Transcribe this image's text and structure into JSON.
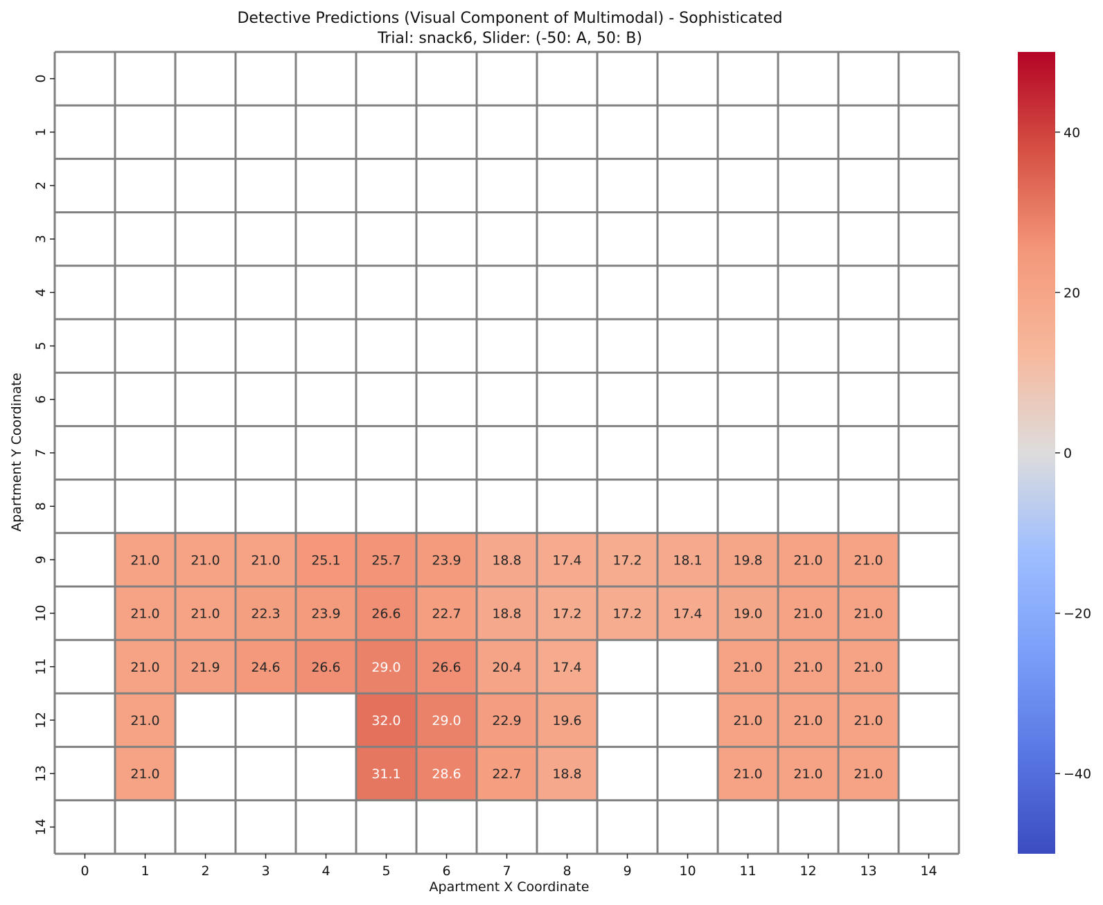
{
  "chart_data": {
    "type": "heatmap",
    "title": "Detective Predictions (Visual Component of Multimodal) - Sophisticated",
    "subtitle": "Trial: snack6, Slider: (-50: A, 50: B)",
    "xlabel": "Apartment X Coordinate",
    "ylabel": "Apartment Y Coordinate",
    "x": [
      "0",
      "1",
      "2",
      "3",
      "4",
      "5",
      "6",
      "7",
      "8",
      "9",
      "10",
      "11",
      "12",
      "13",
      "14"
    ],
    "y": [
      "0",
      "1",
      "2",
      "3",
      "4",
      "5",
      "6",
      "7",
      "8",
      "9",
      "10",
      "11",
      "12",
      "13",
      "14"
    ],
    "values": [
      [
        null,
        null,
        null,
        null,
        null,
        null,
        null,
        null,
        null,
        null,
        null,
        null,
        null,
        null,
        null
      ],
      [
        null,
        null,
        null,
        null,
        null,
        null,
        null,
        null,
        null,
        null,
        null,
        null,
        null,
        null,
        null
      ],
      [
        null,
        null,
        null,
        null,
        null,
        null,
        null,
        null,
        null,
        null,
        null,
        null,
        null,
        null,
        null
      ],
      [
        null,
        null,
        null,
        null,
        null,
        null,
        null,
        null,
        null,
        null,
        null,
        null,
        null,
        null,
        null
      ],
      [
        null,
        null,
        null,
        null,
        null,
        null,
        null,
        null,
        null,
        null,
        null,
        null,
        null,
        null,
        null
      ],
      [
        null,
        null,
        null,
        null,
        null,
        null,
        null,
        null,
        null,
        null,
        null,
        null,
        null,
        null,
        null
      ],
      [
        null,
        null,
        null,
        null,
        null,
        null,
        null,
        null,
        null,
        null,
        null,
        null,
        null,
        null,
        null
      ],
      [
        null,
        null,
        null,
        null,
        null,
        null,
        null,
        null,
        null,
        null,
        null,
        null,
        null,
        null,
        null
      ],
      [
        null,
        null,
        null,
        null,
        null,
        null,
        null,
        null,
        null,
        null,
        null,
        null,
        null,
        null,
        null
      ],
      [
        null,
        21.0,
        21.0,
        21.0,
        25.1,
        25.7,
        23.9,
        18.8,
        17.4,
        17.2,
        18.1,
        19.8,
        21.0,
        21.0,
        null
      ],
      [
        null,
        21.0,
        21.0,
        22.3,
        23.9,
        26.6,
        22.7,
        18.8,
        17.2,
        17.2,
        17.4,
        19.0,
        21.0,
        21.0,
        null
      ],
      [
        null,
        21.0,
        21.9,
        24.6,
        26.6,
        29.0,
        26.6,
        20.4,
        17.4,
        null,
        null,
        21.0,
        21.0,
        21.0,
        null
      ],
      [
        null,
        21.0,
        null,
        null,
        null,
        32.0,
        29.0,
        22.9,
        19.6,
        null,
        null,
        21.0,
        21.0,
        21.0,
        null
      ],
      [
        null,
        21.0,
        null,
        null,
        null,
        31.1,
        28.6,
        22.7,
        18.8,
        null,
        null,
        21.0,
        21.0,
        21.0,
        null
      ],
      [
        null,
        null,
        null,
        null,
        null,
        null,
        null,
        null,
        null,
        null,
        null,
        null,
        null,
        null,
        null
      ]
    ],
    "colorbar": {
      "colormap": "coolwarm",
      "range": [
        -50,
        50
      ],
      "ticks": [
        "40",
        "20",
        "0",
        "−20",
        "−40"
      ],
      "tick_values": [
        40,
        20,
        0,
        -20,
        -40
      ]
    },
    "grid": true,
    "grid_color": "#808080",
    "legend": "colorbar right"
  }
}
